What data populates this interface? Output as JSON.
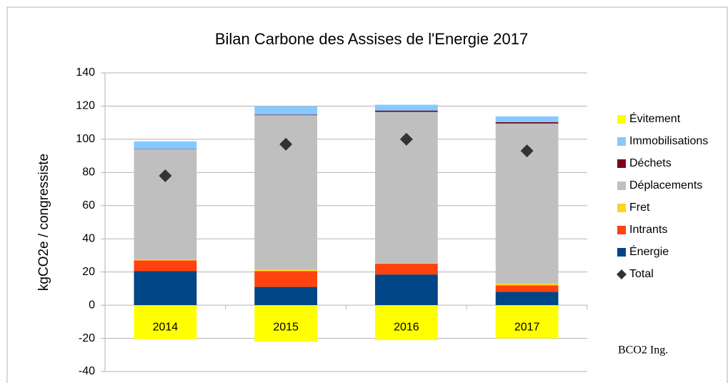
{
  "chart_data": {
    "type": "bar",
    "stacked": true,
    "title": "Bilan Carbone des Assises de l'Energie 2017",
    "y_label": "kgCO2e / congressiste",
    "annotation": "BCO2 Ing.",
    "categories": [
      "2014",
      "2015",
      "2016",
      "2017"
    ],
    "series": [
      {
        "name": "Évitement",
        "color": "#ffff00",
        "values": [
          -20.5,
          -22,
          -21,
          -20
        ]
      },
      {
        "name": "Immobilisations",
        "color": "#83caff",
        "values": [
          4.5,
          5,
          3.5,
          3.5
        ]
      },
      {
        "name": "Déchets",
        "color": "#7e0021",
        "values": [
          0.2,
          0.3,
          0.8,
          0.8
        ]
      },
      {
        "name": "Déplacements",
        "color": "#bfbfbf",
        "values": [
          66.5,
          93,
          91,
          96.5
        ]
      },
      {
        "name": "Fret",
        "color": "#ffd320",
        "values": [
          0.5,
          1,
          0.5,
          1
        ]
      },
      {
        "name": "Intrants",
        "color": "#ff420e",
        "values": [
          6.5,
          9.5,
          6.5,
          4
        ]
      },
      {
        "name": "Énergie",
        "color": "#004586",
        "values": [
          20.5,
          11,
          18.5,
          8
        ]
      },
      {
        "name": "Total",
        "color": "#333333",
        "type": "marker",
        "values": [
          78,
          97,
          100,
          93
        ]
      }
    ],
    "ylim": [
      -40,
      140
    ],
    "yticks": [
      -40,
      -20,
      0,
      20,
      40,
      60,
      80,
      100,
      120,
      140
    ],
    "grid": true
  }
}
